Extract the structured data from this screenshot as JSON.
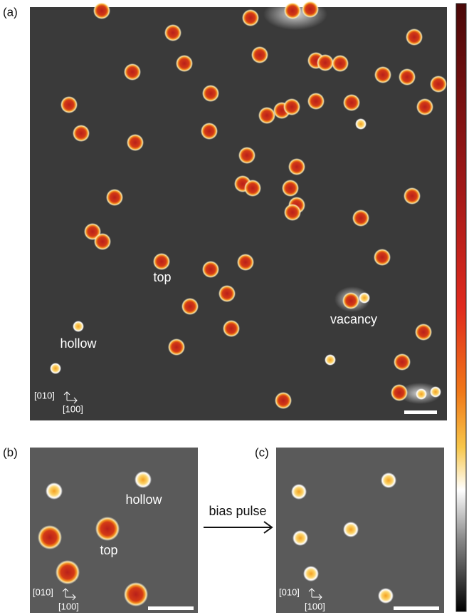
{
  "panels": [
    {
      "label": "(a)",
      "annotations": [
        "top",
        "hollow",
        "vacancy"
      ],
      "axes": [
        "[010]",
        "[100]"
      ]
    },
    {
      "label": "(b)",
      "annotations": [
        "top",
        "hollow"
      ],
      "axes": [
        "[010]",
        "[100]"
      ]
    },
    {
      "label": "(c)",
      "axes": [
        "[010]",
        "[100]"
      ]
    }
  ],
  "arrow_label": "bias pulse"
}
